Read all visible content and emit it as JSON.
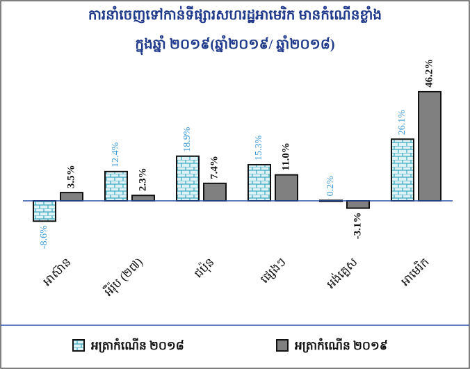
{
  "chart_data": {
    "type": "bar",
    "title": "ការនាំចេញទៅកាន់ទីផ្សារសហរដ្ឋអាមេរិក មានកំណើនខ្លាំង",
    "subtitle": "ក្នុងឆ្នាំ ២០១៩(ឆ្នាំ២០១៩/ ឆ្នាំ២០១៨)",
    "categories": [
      "អាស៊ាន",
      "អឺរ៉ុប (២៧)",
      "ជប៉ុន",
      "ផ្សេងៗ",
      "អង់គ្លេស",
      "អាមេរិក"
    ],
    "series": [
      {
        "name": "អត្រាកំណើន ២០១៨",
        "color": "#bfe6ef",
        "values": [
          -8.6,
          12.4,
          18.9,
          15.3,
          0.2,
          26.1
        ],
        "value_labels": [
          "-8.6%",
          "12.4%",
          "18.9%",
          "15.3%",
          "0.2%",
          "26.1%"
        ]
      },
      {
        "name": "អត្រាកំណើន ២០១៩",
        "color": "#808080",
        "values": [
          3.5,
          2.3,
          7.4,
          11.0,
          -3.1,
          46.2
        ],
        "value_labels": [
          "3.5%",
          "2.3%",
          "7.4%",
          "11.0%",
          "-3.1%",
          "46.2%"
        ]
      }
    ],
    "ylim": [
      -10,
      50
    ]
  }
}
